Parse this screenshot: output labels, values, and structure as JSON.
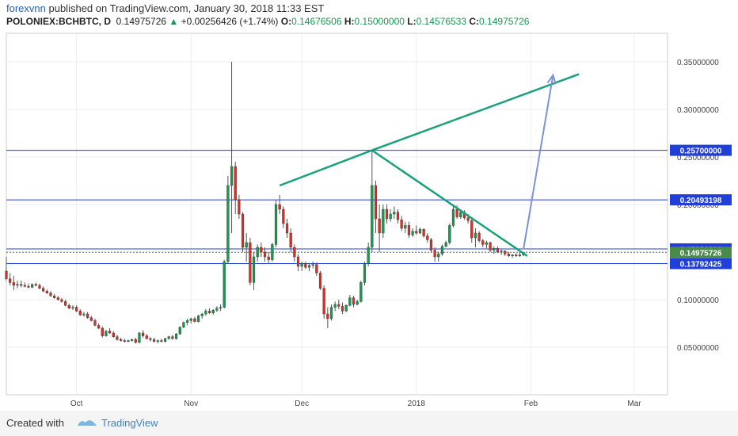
{
  "header": {
    "author": "forexvnn",
    "published_text": " published on TradingView.com, January 30, 2018 11:33 EST",
    "symbol": "POLONIEX:BCHBTC, D",
    "last": "0.14975726",
    "up_arrow": "▲",
    "change": "+0.00256426 (+1.74%)",
    "open_label": "O:",
    "open": "0.14676506",
    "high_label": "H:",
    "high": "0.15000000",
    "low_label": "L:",
    "low": "0.14576533",
    "close_label": "C:",
    "close": "0.14975726"
  },
  "footer": {
    "created_with": "Created with",
    "brand": "TradingView"
  },
  "colors": {
    "up": "#1a9850",
    "down": "#d73027",
    "hline": "#1f3fd6",
    "trend": "#1aa07a",
    "projection": "#7b93d6",
    "current_badge": "#4a8a4a",
    "level_badge": "#1f3fd6"
  },
  "chart_data": {
    "type": "candlestick",
    "symbol": "POLONIEX:BCHBTC",
    "interval": "D",
    "ylim": [
      0.0,
      0.38
    ],
    "x_range": [
      "2017-09-12",
      "2018-03-10"
    ],
    "y_ticks": [
      "0.05000000",
      "0.10000000",
      "0.15000000",
      "0.20000000",
      "0.25000000",
      "0.30000000",
      "0.35000000"
    ],
    "y_tick_values": [
      0.05,
      0.1,
      0.15,
      0.2,
      0.25,
      0.3,
      0.35
    ],
    "x_ticks": [
      {
        "label": "Oct",
        "date": "2017-10-01"
      },
      {
        "label": "Nov",
        "date": "2017-11-01"
      },
      {
        "label": "Dec",
        "date": "2017-12-01"
      },
      {
        "label": "2018",
        "date": "2018-01-01"
      },
      {
        "label": "Feb",
        "date": "2018-02-01"
      },
      {
        "label": "Mar",
        "date": "2018-03-01"
      }
    ],
    "horizontal_levels": [
      {
        "label": "0.25700000",
        "value": 0.257
      },
      {
        "label": "0.20493198",
        "value": 0.20493198
      },
      {
        "label": "0.15336206",
        "value": 0.15336206
      },
      {
        "label": "0.13792425",
        "value": 0.13792425
      }
    ],
    "current_price": {
      "label": "0.14975726",
      "value": 0.14975726
    },
    "trendlines": [
      {
        "name": "rising",
        "points": [
          [
            "2017-11-25",
            0.22
          ],
          [
            "2017-12-20",
            0.257
          ],
          [
            "2018-02-14",
            0.337
          ]
        ]
      },
      {
        "name": "falling",
        "points": [
          [
            "2017-12-20",
            0.257
          ],
          [
            "2018-01-31",
            0.146
          ]
        ]
      }
    ],
    "projection_arrow": {
      "from": [
        "2018-01-30",
        0.153
      ],
      "to": [
        "2018-02-07",
        0.336
      ]
    },
    "candles": [
      [
        "2017-09-12",
        0.13,
        0.145,
        0.12,
        0.122
      ],
      [
        "2017-09-13",
        0.122,
        0.128,
        0.115,
        0.118
      ],
      [
        "2017-09-14",
        0.118,
        0.125,
        0.11,
        0.115
      ],
      [
        "2017-09-15",
        0.115,
        0.12,
        0.112,
        0.116
      ],
      [
        "2017-09-16",
        0.116,
        0.12,
        0.113,
        0.115
      ],
      [
        "2017-09-17",
        0.115,
        0.118,
        0.113,
        0.114
      ],
      [
        "2017-09-18",
        0.114,
        0.117,
        0.112,
        0.113
      ],
      [
        "2017-09-19",
        0.113,
        0.117,
        0.112,
        0.116
      ],
      [
        "2017-09-20",
        0.116,
        0.118,
        0.114,
        0.115
      ],
      [
        "2017-09-21",
        0.115,
        0.117,
        0.111,
        0.112
      ],
      [
        "2017-09-22",
        0.112,
        0.114,
        0.108,
        0.109
      ],
      [
        "2017-09-23",
        0.109,
        0.111,
        0.106,
        0.107
      ],
      [
        "2017-09-24",
        0.107,
        0.109,
        0.103,
        0.104
      ],
      [
        "2017-09-25",
        0.104,
        0.106,
        0.101,
        0.102
      ],
      [
        "2017-09-26",
        0.102,
        0.104,
        0.099,
        0.1
      ],
      [
        "2017-09-27",
        0.1,
        0.102,
        0.097,
        0.098
      ],
      [
        "2017-09-28",
        0.098,
        0.1,
        0.093,
        0.094
      ],
      [
        "2017-09-29",
        0.094,
        0.096,
        0.09,
        0.091
      ],
      [
        "2017-09-30",
        0.091,
        0.094,
        0.089,
        0.092
      ],
      [
        "2017-10-01",
        0.092,
        0.094,
        0.087,
        0.088
      ],
      [
        "2017-10-02",
        0.088,
        0.09,
        0.083,
        0.084
      ],
      [
        "2017-10-03",
        0.084,
        0.087,
        0.082,
        0.085
      ],
      [
        "2017-10-04",
        0.085,
        0.087,
        0.08,
        0.081
      ],
      [
        "2017-10-05",
        0.081,
        0.083,
        0.077,
        0.078
      ],
      [
        "2017-10-06",
        0.078,
        0.08,
        0.072,
        0.073
      ],
      [
        "2017-10-07",
        0.073,
        0.075,
        0.069,
        0.07
      ],
      [
        "2017-10-08",
        0.07,
        0.072,
        0.06,
        0.062
      ],
      [
        "2017-10-09",
        0.062,
        0.068,
        0.061,
        0.067
      ],
      [
        "2017-10-10",
        0.067,
        0.07,
        0.064,
        0.065
      ],
      [
        "2017-10-11",
        0.065,
        0.067,
        0.06,
        0.061
      ],
      [
        "2017-10-12",
        0.061,
        0.063,
        0.057,
        0.058
      ],
      [
        "2017-10-13",
        0.058,
        0.06,
        0.056,
        0.057
      ],
      [
        "2017-10-14",
        0.057,
        0.059,
        0.055,
        0.056
      ],
      [
        "2017-10-15",
        0.056,
        0.058,
        0.055,
        0.057
      ],
      [
        "2017-10-16",
        0.057,
        0.059,
        0.056,
        0.058
      ],
      [
        "2017-10-17",
        0.058,
        0.06,
        0.054,
        0.055
      ],
      [
        "2017-10-18",
        0.055,
        0.066,
        0.054,
        0.065
      ],
      [
        "2017-10-19",
        0.065,
        0.068,
        0.06,
        0.062
      ],
      [
        "2017-10-20",
        0.062,
        0.064,
        0.058,
        0.059
      ],
      [
        "2017-10-21",
        0.059,
        0.061,
        0.056,
        0.058
      ],
      [
        "2017-10-22",
        0.058,
        0.06,
        0.055,
        0.056
      ],
      [
        "2017-10-23",
        0.056,
        0.058,
        0.054,
        0.057
      ],
      [
        "2017-10-24",
        0.057,
        0.059,
        0.055,
        0.056
      ],
      [
        "2017-10-25",
        0.056,
        0.06,
        0.055,
        0.059
      ],
      [
        "2017-10-26",
        0.059,
        0.062,
        0.058,
        0.061
      ],
      [
        "2017-10-27",
        0.061,
        0.063,
        0.058,
        0.059
      ],
      [
        "2017-10-28",
        0.059,
        0.065,
        0.058,
        0.064
      ],
      [
        "2017-10-29",
        0.064,
        0.072,
        0.063,
        0.071
      ],
      [
        "2017-10-30",
        0.071,
        0.077,
        0.07,
        0.076
      ],
      [
        "2017-10-31",
        0.076,
        0.08,
        0.073,
        0.078
      ],
      [
        "2017-11-01",
        0.078,
        0.081,
        0.075,
        0.08
      ],
      [
        "2017-11-02",
        0.08,
        0.082,
        0.076,
        0.077
      ],
      [
        "2017-11-03",
        0.077,
        0.084,
        0.076,
        0.083
      ],
      [
        "2017-11-04",
        0.083,
        0.086,
        0.08,
        0.085
      ],
      [
        "2017-11-05",
        0.085,
        0.09,
        0.083,
        0.088
      ],
      [
        "2017-11-06",
        0.088,
        0.091,
        0.085,
        0.086
      ],
      [
        "2017-11-07",
        0.086,
        0.09,
        0.084,
        0.089
      ],
      [
        "2017-11-08",
        0.089,
        0.093,
        0.087,
        0.091
      ],
      [
        "2017-11-09",
        0.091,
        0.095,
        0.088,
        0.092
      ],
      [
        "2017-11-10",
        0.092,
        0.142,
        0.091,
        0.14
      ],
      [
        "2017-11-11",
        0.14,
        0.23,
        0.138,
        0.22
      ],
      [
        "2017-11-12",
        0.22,
        0.35,
        0.17,
        0.24
      ],
      [
        "2017-11-13",
        0.24,
        0.245,
        0.19,
        0.205
      ],
      [
        "2017-11-14",
        0.205,
        0.21,
        0.185,
        0.19
      ],
      [
        "2017-11-15",
        0.19,
        0.192,
        0.15,
        0.155
      ],
      [
        "2017-11-16",
        0.155,
        0.17,
        0.14,
        0.16
      ],
      [
        "2017-11-17",
        0.16,
        0.165,
        0.115,
        0.118
      ],
      [
        "2017-11-18",
        0.118,
        0.15,
        0.11,
        0.145
      ],
      [
        "2017-11-19",
        0.145,
        0.158,
        0.14,
        0.155
      ],
      [
        "2017-11-20",
        0.155,
        0.16,
        0.145,
        0.15
      ],
      [
        "2017-11-21",
        0.15,
        0.155,
        0.14,
        0.145
      ],
      [
        "2017-11-22",
        0.145,
        0.15,
        0.138,
        0.142
      ],
      [
        "2017-11-23",
        0.142,
        0.16,
        0.14,
        0.158
      ],
      [
        "2017-11-24",
        0.158,
        0.205,
        0.155,
        0.2
      ],
      [
        "2017-11-25",
        0.2,
        0.21,
        0.19,
        0.195
      ],
      [
        "2017-11-26",
        0.195,
        0.198,
        0.175,
        0.18
      ],
      [
        "2017-11-27",
        0.18,
        0.185,
        0.165,
        0.17
      ],
      [
        "2017-11-28",
        0.17,
        0.175,
        0.15,
        0.155
      ],
      [
        "2017-11-29",
        0.155,
        0.158,
        0.14,
        0.145
      ],
      [
        "2017-11-30",
        0.145,
        0.148,
        0.13,
        0.135
      ],
      [
        "2017-12-01",
        0.135,
        0.14,
        0.13,
        0.138
      ],
      [
        "2017-12-02",
        0.138,
        0.14,
        0.132,
        0.134
      ],
      [
        "2017-12-03",
        0.134,
        0.138,
        0.13,
        0.136
      ],
      [
        "2017-12-04",
        0.136,
        0.14,
        0.133,
        0.137
      ],
      [
        "2017-12-05",
        0.137,
        0.139,
        0.125,
        0.128
      ],
      [
        "2017-12-06",
        0.128,
        0.13,
        0.11,
        0.112
      ],
      [
        "2017-12-07",
        0.112,
        0.115,
        0.08,
        0.085
      ],
      [
        "2017-12-08",
        0.085,
        0.092,
        0.07,
        0.08
      ],
      [
        "2017-12-09",
        0.08,
        0.095,
        0.078,
        0.092
      ],
      [
        "2017-12-10",
        0.092,
        0.098,
        0.088,
        0.095
      ],
      [
        "2017-12-11",
        0.095,
        0.1,
        0.09,
        0.093
      ],
      [
        "2017-12-12",
        0.093,
        0.097,
        0.085,
        0.088
      ],
      [
        "2017-12-13",
        0.088,
        0.095,
        0.087,
        0.094
      ],
      [
        "2017-12-14",
        0.094,
        0.105,
        0.093,
        0.102
      ],
      [
        "2017-12-15",
        0.102,
        0.104,
        0.092,
        0.095
      ],
      [
        "2017-12-16",
        0.095,
        0.1,
        0.094,
        0.098
      ],
      [
        "2017-12-17",
        0.098,
        0.12,
        0.097,
        0.118
      ],
      [
        "2017-12-18",
        0.118,
        0.14,
        0.115,
        0.138
      ],
      [
        "2017-12-19",
        0.138,
        0.16,
        0.135,
        0.155
      ],
      [
        "2017-12-20",
        0.155,
        0.257,
        0.15,
        0.22
      ],
      [
        "2017-12-21",
        0.22,
        0.225,
        0.17,
        0.185
      ],
      [
        "2017-12-22",
        0.185,
        0.2,
        0.15,
        0.17
      ],
      [
        "2017-12-23",
        0.17,
        0.2,
        0.165,
        0.195
      ],
      [
        "2017-12-24",
        0.195,
        0.2,
        0.18,
        0.185
      ],
      [
        "2017-12-25",
        0.185,
        0.195,
        0.182,
        0.19
      ],
      [
        "2017-12-26",
        0.19,
        0.198,
        0.185,
        0.192
      ],
      [
        "2017-12-27",
        0.192,
        0.195,
        0.18,
        0.184
      ],
      [
        "2017-12-28",
        0.184,
        0.188,
        0.172,
        0.175
      ],
      [
        "2017-12-29",
        0.175,
        0.182,
        0.17,
        0.178
      ],
      [
        "2017-12-30",
        0.178,
        0.182,
        0.165,
        0.168
      ],
      [
        "2017-12-31",
        0.168,
        0.175,
        0.166,
        0.172
      ],
      [
        "2018-01-01",
        0.172,
        0.178,
        0.168,
        0.17
      ],
      [
        "2018-01-02",
        0.17,
        0.176,
        0.169,
        0.174
      ],
      [
        "2018-01-03",
        0.174,
        0.175,
        0.165,
        0.167
      ],
      [
        "2018-01-04",
        0.167,
        0.17,
        0.16,
        0.163
      ],
      [
        "2018-01-05",
        0.163,
        0.165,
        0.15,
        0.152
      ],
      [
        "2018-01-06",
        0.152,
        0.155,
        0.14,
        0.145
      ],
      [
        "2018-01-07",
        0.145,
        0.15,
        0.14,
        0.148
      ],
      [
        "2018-01-08",
        0.148,
        0.158,
        0.146,
        0.156
      ],
      [
        "2018-01-09",
        0.156,
        0.162,
        0.155,
        0.16
      ],
      [
        "2018-01-10",
        0.16,
        0.18,
        0.158,
        0.178
      ],
      [
        "2018-01-11",
        0.178,
        0.2,
        0.176,
        0.195
      ],
      [
        "2018-01-12",
        0.195,
        0.199,
        0.185,
        0.187
      ],
      [
        "2018-01-13",
        0.187,
        0.195,
        0.185,
        0.192
      ],
      [
        "2018-01-14",
        0.192,
        0.194,
        0.184,
        0.186
      ],
      [
        "2018-01-15",
        0.186,
        0.19,
        0.18,
        0.183
      ],
      [
        "2018-01-16",
        0.183,
        0.185,
        0.16,
        0.165
      ],
      [
        "2018-01-17",
        0.165,
        0.175,
        0.155,
        0.17
      ],
      [
        "2018-01-18",
        0.17,
        0.172,
        0.16,
        0.162
      ],
      [
        "2018-01-19",
        0.162,
        0.164,
        0.155,
        0.158
      ],
      [
        "2018-01-20",
        0.158,
        0.162,
        0.154,
        0.16
      ],
      [
        "2018-01-21",
        0.16,
        0.161,
        0.15,
        0.152
      ],
      [
        "2018-01-22",
        0.152,
        0.156,
        0.148,
        0.154
      ],
      [
        "2018-01-23",
        0.154,
        0.156,
        0.149,
        0.15
      ],
      [
        "2018-01-24",
        0.15,
        0.153,
        0.147,
        0.151
      ],
      [
        "2018-01-25",
        0.151,
        0.152,
        0.146,
        0.148
      ],
      [
        "2018-01-26",
        0.148,
        0.15,
        0.145,
        0.146
      ],
      [
        "2018-01-27",
        0.146,
        0.148,
        0.144,
        0.147
      ],
      [
        "2018-01-28",
        0.147,
        0.149,
        0.145,
        0.146
      ],
      [
        "2018-01-29",
        0.146,
        0.15,
        0.145,
        0.147
      ],
      [
        "2018-01-30",
        0.14676506,
        0.15,
        0.14576533,
        0.14975726
      ]
    ]
  }
}
